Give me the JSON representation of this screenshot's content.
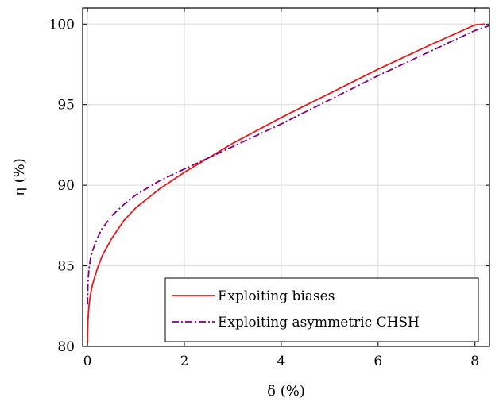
{
  "chart_data": {
    "type": "line",
    "xlabel": "δ (%)",
    "ylabel": "η (%)",
    "xlim": [
      -0.1,
      8.3
    ],
    "ylim": [
      80,
      101
    ],
    "xticks": [
      0,
      2,
      4,
      6,
      8
    ],
    "yticks": [
      80,
      85,
      90,
      95,
      100
    ],
    "grid": true,
    "legend_position": "bottom-right",
    "series": [
      {
        "name": "Exploiting biases",
        "color": "#e8191c",
        "style": "solid",
        "x": [
          0.0,
          0.01,
          0.03,
          0.06,
          0.1,
          0.2,
          0.3,
          0.5,
          0.75,
          1.0,
          1.5,
          2.0,
          2.5,
          3.0,
          3.5,
          4.0,
          5.0,
          6.0,
          7.0,
          8.0,
          8.2
        ],
        "y": [
          80.2,
          81.6,
          82.5,
          83.2,
          83.8,
          84.8,
          85.6,
          86.7,
          87.8,
          88.6,
          89.8,
          90.8,
          91.7,
          92.6,
          93.4,
          94.2,
          95.7,
          97.2,
          98.6,
          99.95,
          100.0
        ]
      },
      {
        "name": "Exploiting asymmetric CHSH",
        "color": "#800080",
        "style": "dashdot",
        "x": [
          0.0,
          0.01,
          0.03,
          0.06,
          0.1,
          0.2,
          0.3,
          0.5,
          0.75,
          1.0,
          1.5,
          2.0,
          2.5,
          3.0,
          3.5,
          4.0,
          5.0,
          6.0,
          7.0,
          8.0,
          8.3
        ],
        "y": [
          82.6,
          83.9,
          84.8,
          85.4,
          85.9,
          86.7,
          87.3,
          88.1,
          88.8,
          89.4,
          90.3,
          91.0,
          91.7,
          92.4,
          93.1,
          93.8,
          95.3,
          96.8,
          98.2,
          99.6,
          99.9
        ]
      }
    ]
  }
}
